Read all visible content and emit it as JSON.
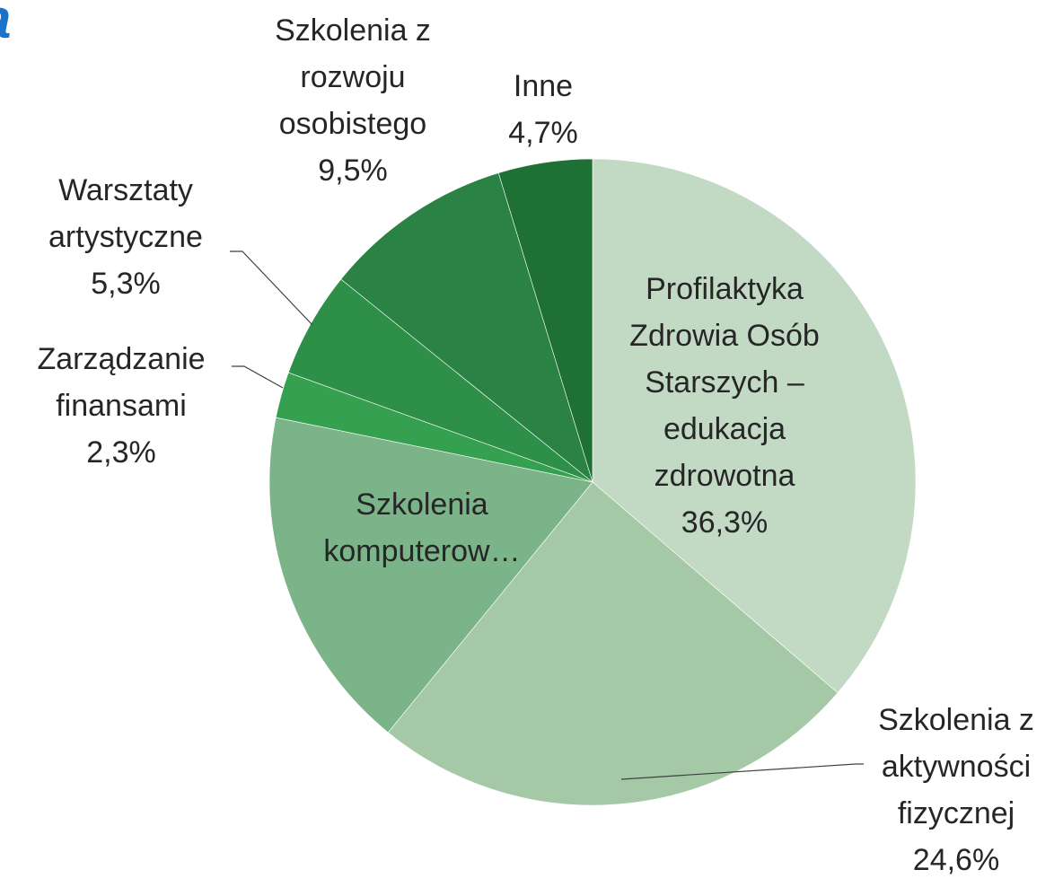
{
  "chart_data": {
    "type": "pie",
    "title": "a",
    "categories": [
      "Profilaktyka Zdrowia Osób Starszych – edukacja zdrowotna",
      "Szkolenia z aktywności fizycznej",
      "Szkolenia komputerow…",
      "Zarządzanie finansami",
      "Warsztaty artystyczne",
      "Szkolenia z rozwoju osobistego",
      "Inne"
    ],
    "values": [
      36.3,
      24.6,
      17.3,
      2.3,
      5.3,
      9.5,
      4.7
    ],
    "value_labels": [
      "36,3%",
      "24,6%",
      null,
      "2,3%",
      "5,3%",
      "9,5%",
      "4,7%"
    ],
    "colors": [
      "#c2dac4",
      "#a5c9a7",
      "#7bb489",
      "#34a050",
      "#2d8f48",
      "#2a8244",
      "#1f7034"
    ]
  }
}
